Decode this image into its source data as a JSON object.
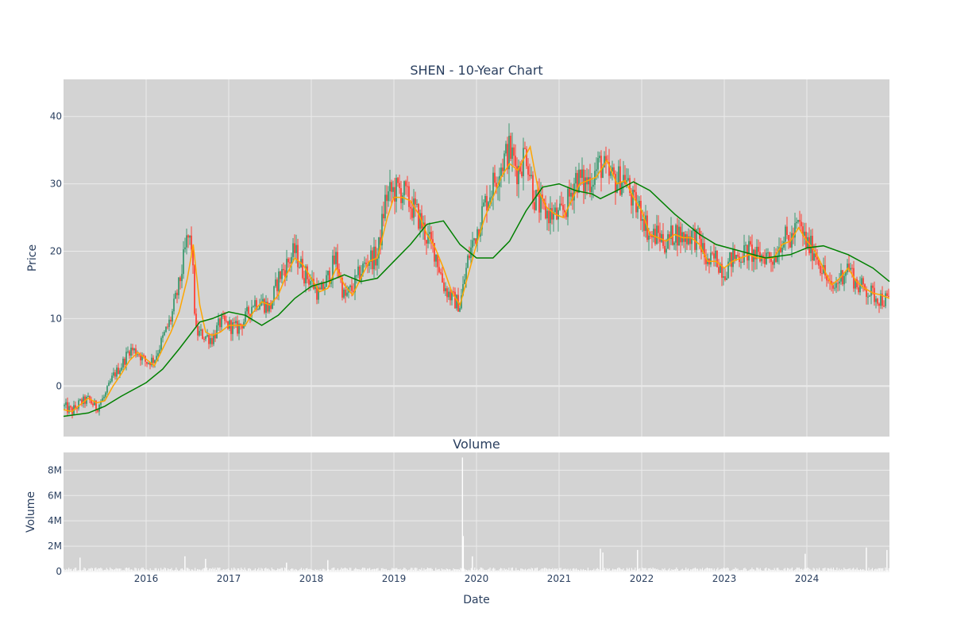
{
  "chart_data": [
    {
      "type": "candlestick",
      "title": "SHEN - 10-Year Chart",
      "ylabel": "Price",
      "ylim": [
        -7.5,
        45.5
      ],
      "y_ticks": [
        0,
        10,
        20,
        30,
        40
      ],
      "xlim": [
        2015.0,
        2025.0
      ],
      "up_color": "#3d9970",
      "down_color": "#ff4136",
      "plot_bg": "#d3d3d3",
      "series": [
        {
          "name": "",
          "kind": "ohlc-close-path",
          "points": [
            [
              2015.0,
              -3.0
            ],
            [
              2015.1,
              -3.8
            ],
            [
              2015.2,
              -2.5
            ],
            [
              2015.3,
              -2.0
            ],
            [
              2015.4,
              -3.2
            ],
            [
              2015.5,
              -1.5
            ],
            [
              2015.6,
              1.5
            ],
            [
              2015.7,
              3.0
            ],
            [
              2015.8,
              5.5
            ],
            [
              2015.9,
              5.0
            ],
            [
              2016.0,
              3.5
            ],
            [
              2016.1,
              4.0
            ],
            [
              2016.2,
              7.0
            ],
            [
              2016.3,
              10.0
            ],
            [
              2016.4,
              15.0
            ],
            [
              2016.5,
              22.0
            ],
            [
              2016.55,
              21.0
            ],
            [
              2016.6,
              8.0
            ],
            [
              2016.7,
              7.5
            ],
            [
              2016.8,
              7.0
            ],
            [
              2016.9,
              9.5
            ],
            [
              2017.0,
              9.0
            ],
            [
              2017.1,
              8.5
            ],
            [
              2017.2,
              10.0
            ],
            [
              2017.3,
              12.5
            ],
            [
              2017.4,
              12.5
            ],
            [
              2017.5,
              11.5
            ],
            [
              2017.6,
              16.0
            ],
            [
              2017.7,
              18.0
            ],
            [
              2017.8,
              20.0
            ],
            [
              2017.9,
              17.0
            ],
            [
              2018.0,
              15.5
            ],
            [
              2018.1,
              13.5
            ],
            [
              2018.2,
              16.0
            ],
            [
              2018.3,
              19.0
            ],
            [
              2018.4,
              13.0
            ],
            [
              2018.5,
              14.5
            ],
            [
              2018.6,
              17.0
            ],
            [
              2018.7,
              19.0
            ],
            [
              2018.8,
              19.0
            ],
            [
              2018.9,
              28.0
            ],
            [
              2019.0,
              29.0
            ],
            [
              2019.1,
              29.0
            ],
            [
              2019.2,
              27.0
            ],
            [
              2019.3,
              25.0
            ],
            [
              2019.4,
              22.0
            ],
            [
              2019.5,
              20.0
            ],
            [
              2019.6,
              15.0
            ],
            [
              2019.7,
              13.0
            ],
            [
              2019.8,
              12.0
            ],
            [
              2019.9,
              19.0
            ],
            [
              2020.0,
              23.0
            ],
            [
              2020.1,
              27.0
            ],
            [
              2020.2,
              30.0
            ],
            [
              2020.3,
              33.0
            ],
            [
              2020.4,
              35.0
            ],
            [
              2020.5,
              32.0
            ],
            [
              2020.6,
              35.0
            ],
            [
              2020.7,
              28.0
            ],
            [
              2020.8,
              26.0
            ],
            [
              2020.9,
              25.5
            ],
            [
              2021.0,
              25.0
            ],
            [
              2021.1,
              27.0
            ],
            [
              2021.2,
              31.0
            ],
            [
              2021.3,
              30.0
            ],
            [
              2021.4,
              31.0
            ],
            [
              2021.5,
              33.0
            ],
            [
              2021.6,
              31.0
            ],
            [
              2021.7,
              30.5
            ],
            [
              2021.8,
              31.0
            ],
            [
              2021.9,
              27.0
            ],
            [
              2022.0,
              26.0
            ],
            [
              2022.1,
              22.0
            ],
            [
              2022.2,
              22.5
            ],
            [
              2022.3,
              21.0
            ],
            [
              2022.4,
              23.0
            ],
            [
              2022.5,
              22.0
            ],
            [
              2022.6,
              22.5
            ],
            [
              2022.7,
              21.5
            ],
            [
              2022.8,
              18.0
            ],
            [
              2022.9,
              19.0
            ],
            [
              2023.0,
              17.0
            ],
            [
              2023.1,
              19.0
            ],
            [
              2023.2,
              19.5
            ],
            [
              2023.3,
              20.0
            ],
            [
              2023.4,
              19.0
            ],
            [
              2023.5,
              19.5
            ],
            [
              2023.6,
              19.0
            ],
            [
              2023.7,
              22.0
            ],
            [
              2023.8,
              21.5
            ],
            [
              2023.9,
              24.0
            ],
            [
              2024.0,
              21.0
            ],
            [
              2024.1,
              20.0
            ],
            [
              2024.2,
              17.0
            ],
            [
              2024.3,
              14.0
            ],
            [
              2024.4,
              16.0
            ],
            [
              2024.5,
              18.0
            ],
            [
              2024.6,
              15.0
            ],
            [
              2024.7,
              14.5
            ],
            [
              2024.8,
              13.5
            ],
            [
              2024.9,
              13.0
            ],
            [
              2025.0,
              12.5
            ]
          ]
        },
        {
          "name": "",
          "kind": "ma-short",
          "color": "#ffa500",
          "points": [
            [
              2015.0,
              -3.5
            ],
            [
              2015.1,
              -3.8
            ],
            [
              2015.2,
              -2.8
            ],
            [
              2015.3,
              -1.8
            ],
            [
              2015.4,
              -2.5
            ],
            [
              2015.5,
              -2.2
            ],
            [
              2015.6,
              0.0
            ],
            [
              2015.7,
              1.8
            ],
            [
              2015.8,
              3.8
            ],
            [
              2015.9,
              5.0
            ],
            [
              2016.0,
              4.0
            ],
            [
              2016.1,
              3.0
            ],
            [
              2016.2,
              5.5
            ],
            [
              2016.3,
              8.0
            ],
            [
              2016.4,
              11.0
            ],
            [
              2016.5,
              16.0
            ],
            [
              2016.57,
              21.0
            ],
            [
              2016.65,
              12.0
            ],
            [
              2016.72,
              8.0
            ],
            [
              2016.8,
              7.5
            ],
            [
              2016.9,
              8.0
            ],
            [
              2017.0,
              9.0
            ],
            [
              2017.1,
              9.0
            ],
            [
              2017.2,
              9.0
            ],
            [
              2017.3,
              11.0
            ],
            [
              2017.4,
              12.5
            ],
            [
              2017.5,
              12.0
            ],
            [
              2017.6,
              13.5
            ],
            [
              2017.7,
              16.5
            ],
            [
              2017.8,
              19.0
            ],
            [
              2017.9,
              18.0
            ],
            [
              2018.0,
              16.0
            ],
            [
              2018.1,
              14.0
            ],
            [
              2018.2,
              14.5
            ],
            [
              2018.3,
              17.5
            ],
            [
              2018.4,
              15.0
            ],
            [
              2018.5,
              13.5
            ],
            [
              2018.6,
              16.0
            ],
            [
              2018.7,
              18.5
            ],
            [
              2018.8,
              19.0
            ],
            [
              2018.92,
              25.0
            ],
            [
              2019.0,
              28.0
            ],
            [
              2019.1,
              28.0
            ],
            [
              2019.2,
              27.5
            ],
            [
              2019.3,
              25.5
            ],
            [
              2019.4,
              22.5
            ],
            [
              2019.5,
              20.5
            ],
            [
              2019.6,
              17.5
            ],
            [
              2019.7,
              14.0
            ],
            [
              2019.8,
              12.0
            ],
            [
              2019.9,
              16.5
            ],
            [
              2020.0,
              21.0
            ],
            [
              2020.1,
              25.0
            ],
            [
              2020.2,
              28.0
            ],
            [
              2020.3,
              31.0
            ],
            [
              2020.4,
              33.0
            ],
            [
              2020.5,
              32.0
            ],
            [
              2020.65,
              35.5
            ],
            [
              2020.75,
              29.0
            ],
            [
              2020.85,
              26.5
            ],
            [
              2020.95,
              25.5
            ],
            [
              2021.05,
              25.0
            ],
            [
              2021.15,
              27.5
            ],
            [
              2021.25,
              30.0
            ],
            [
              2021.35,
              30.5
            ],
            [
              2021.45,
              31.0
            ],
            [
              2021.58,
              33.5
            ],
            [
              2021.7,
              30.0
            ],
            [
              2021.8,
              30.5
            ],
            [
              2021.9,
              28.0
            ],
            [
              2022.0,
              26.0
            ],
            [
              2022.1,
              22.5
            ],
            [
              2022.2,
              22.0
            ],
            [
              2022.3,
              21.5
            ],
            [
              2022.4,
              22.5
            ],
            [
              2022.5,
              22.0
            ],
            [
              2022.6,
              22.0
            ],
            [
              2022.7,
              21.0
            ],
            [
              2022.8,
              18.5
            ],
            [
              2022.9,
              18.5
            ],
            [
              2023.0,
              17.5
            ],
            [
              2023.1,
              18.5
            ],
            [
              2023.2,
              19.0
            ],
            [
              2023.3,
              19.5
            ],
            [
              2023.4,
              19.0
            ],
            [
              2023.5,
              19.0
            ],
            [
              2023.6,
              19.0
            ],
            [
              2023.7,
              21.0
            ],
            [
              2023.8,
              21.5
            ],
            [
              2023.9,
              23.5
            ],
            [
              2024.0,
              21.5
            ],
            [
              2024.1,
              20.0
            ],
            [
              2024.2,
              17.5
            ],
            [
              2024.3,
              15.0
            ],
            [
              2024.4,
              16.0
            ],
            [
              2024.5,
              17.5
            ],
            [
              2024.6,
              15.5
            ],
            [
              2024.7,
              14.5
            ],
            [
              2024.8,
              13.8
            ],
            [
              2024.9,
              13.5
            ],
            [
              2025.0,
              13.0
            ]
          ]
        },
        {
          "name": "",
          "kind": "ma-long",
          "color": "#008000",
          "points": [
            [
              2015.0,
              -4.5
            ],
            [
              2015.3,
              -4.0
            ],
            [
              2015.5,
              -3.0
            ],
            [
              2015.7,
              -1.5
            ],
            [
              2016.0,
              0.5
            ],
            [
              2016.2,
              2.5
            ],
            [
              2016.4,
              5.5
            ],
            [
              2016.65,
              9.5
            ],
            [
              2016.8,
              10.0
            ],
            [
              2017.0,
              11.0
            ],
            [
              2017.2,
              10.5
            ],
            [
              2017.4,
              9.0
            ],
            [
              2017.6,
              10.5
            ],
            [
              2017.8,
              13.0
            ],
            [
              2018.0,
              14.8
            ],
            [
              2018.2,
              15.5
            ],
            [
              2018.4,
              16.5
            ],
            [
              2018.6,
              15.5
            ],
            [
              2018.8,
              16.0
            ],
            [
              2019.0,
              18.5
            ],
            [
              2019.2,
              21.0
            ],
            [
              2019.4,
              24.0
            ],
            [
              2019.6,
              24.5
            ],
            [
              2019.8,
              21.0
            ],
            [
              2020.0,
              19.0
            ],
            [
              2020.2,
              19.0
            ],
            [
              2020.4,
              21.5
            ],
            [
              2020.6,
              26.0
            ],
            [
              2020.8,
              29.5
            ],
            [
              2021.0,
              30.0
            ],
            [
              2021.2,
              29.0
            ],
            [
              2021.4,
              28.5
            ],
            [
              2021.5,
              27.8
            ],
            [
              2021.7,
              29.0
            ],
            [
              2021.9,
              30.3
            ],
            [
              2022.1,
              29.0
            ],
            [
              2022.4,
              25.5
            ],
            [
              2022.7,
              22.5
            ],
            [
              2022.9,
              21.0
            ],
            [
              2023.2,
              20.0
            ],
            [
              2023.5,
              19.0
            ],
            [
              2023.8,
              19.5
            ],
            [
              2024.0,
              20.5
            ],
            [
              2024.2,
              20.8
            ],
            [
              2024.5,
              19.5
            ],
            [
              2024.8,
              17.5
            ],
            [
              2025.0,
              15.5
            ]
          ]
        }
      ]
    },
    {
      "type": "bar",
      "title": "Volume",
      "xlabel": "Date",
      "ylabel": "Volume",
      "ylim": [
        0,
        9400000
      ],
      "y_ticks": [
        0,
        2000000,
        4000000,
        6000000,
        8000000
      ],
      "y_tick_labels": [
        "0",
        "2M",
        "4M",
        "6M",
        "8M"
      ],
      "x_ticks": [
        2016,
        2017,
        2018,
        2019,
        2020,
        2021,
        2022,
        2023,
        2024
      ],
      "x_tick_labels": [
        "2016",
        "2017",
        "2018",
        "2019",
        "2020",
        "2021",
        "2022",
        "2023",
        "2024"
      ],
      "bar_color": "#ffffff",
      "spikes": [
        [
          2015.2,
          1100000
        ],
        [
          2016.47,
          1200000
        ],
        [
          2016.72,
          1000000
        ],
        [
          2017.7,
          700000
        ],
        [
          2018.2,
          900000
        ],
        [
          2019.83,
          9000000
        ],
        [
          2019.84,
          2800000
        ],
        [
          2019.95,
          1200000
        ],
        [
          2021.5,
          1800000
        ],
        [
          2021.53,
          1500000
        ],
        [
          2021.95,
          1700000
        ],
        [
          2023.98,
          1400000
        ],
        [
          2024.72,
          1900000
        ],
        [
          2024.97,
          1700000
        ]
      ]
    }
  ]
}
